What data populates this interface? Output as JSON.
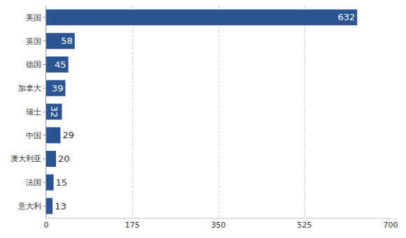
{
  "chart_data": {
    "type": "bar",
    "orientation": "horizontal",
    "categories": [
      "美国",
      "英国",
      "德国",
      "加拿大",
      "瑞士",
      "中国",
      "澳大利亚",
      "法国",
      "意大利"
    ],
    "values": [
      632,
      58,
      45,
      39,
      32,
      29,
      20,
      15,
      13
    ],
    "color": "#2a5592",
    "xlim": [
      0,
      700
    ],
    "xticks": [
      0,
      175,
      350,
      525,
      700
    ],
    "grid": true,
    "data_labels": true
  }
}
